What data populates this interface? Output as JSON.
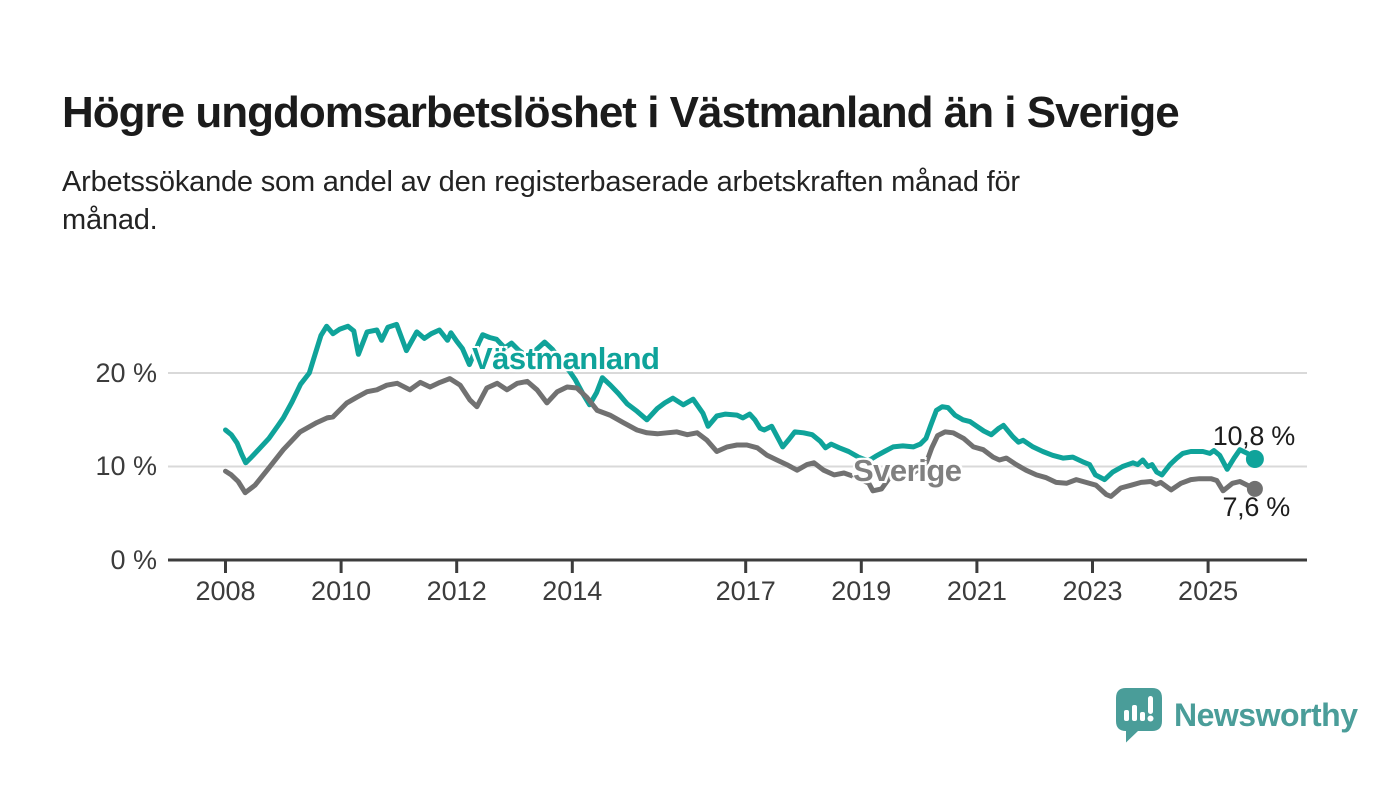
{
  "header": {
    "title": "Högre ungdomsarbetslöshet i Västmanland än i Sverige",
    "subtitle": "Arbetssökande som andel av den registerbaserade arbetskraften månad för\nmånad."
  },
  "chart_data": {
    "type": "line",
    "title": "Högre ungdomsarbetslöshet i Västmanland än i Sverige",
    "subtitle": "Arbetssökande som andel av den registerbaserade arbetskraften månad för månad.",
    "unit": "%",
    "x_ticks": [
      2008,
      2010,
      2012,
      2014,
      2017,
      2019,
      2021,
      2023,
      2025
    ],
    "y_tick_labels": [
      "0 %",
      "10 %",
      "20 %"
    ],
    "y_tick_values": [
      0,
      10,
      20
    ],
    "y_gridlines": [
      10,
      20
    ],
    "ylim": [
      0,
      27
    ],
    "xlim": [
      2007.95,
      2026.7
    ],
    "grid": "horizontal",
    "legend_position": "inline-labels",
    "colors": {
      "grid": "#d9d9d9",
      "axis": "#3c3c3c",
      "tick_text": "#3c3c3c"
    },
    "series": [
      {
        "name": "Västmanland",
        "color": "#0FA39A",
        "end_label": "10,8 %",
        "end_value": 10.8,
        "points": [
          [
            2008.0,
            13.9
          ],
          [
            2008.1,
            13.4
          ],
          [
            2008.2,
            12.5
          ],
          [
            2008.28,
            11.3
          ],
          [
            2008.35,
            10.4
          ],
          [
            2008.45,
            11.0
          ],
          [
            2008.6,
            12.0
          ],
          [
            2008.75,
            13.0
          ],
          [
            2008.9,
            14.3
          ],
          [
            2009.0,
            15.2
          ],
          [
            2009.15,
            16.9
          ],
          [
            2009.3,
            18.8
          ],
          [
            2009.45,
            20.0
          ],
          [
            2009.55,
            22.0
          ],
          [
            2009.65,
            24.0
          ],
          [
            2009.75,
            25.0
          ],
          [
            2009.86,
            24.2
          ],
          [
            2009.98,
            24.7
          ],
          [
            2010.12,
            25.0
          ],
          [
            2010.22,
            24.5
          ],
          [
            2010.3,
            22.0
          ],
          [
            2010.45,
            24.4
          ],
          [
            2010.62,
            24.6
          ],
          [
            2010.7,
            23.5
          ],
          [
            2010.81,
            24.9
          ],
          [
            2010.96,
            25.2
          ],
          [
            2011.13,
            22.4
          ],
          [
            2011.31,
            24.4
          ],
          [
            2011.44,
            23.7
          ],
          [
            2011.56,
            24.2
          ],
          [
            2011.7,
            24.6
          ],
          [
            2011.84,
            23.5
          ],
          [
            2011.9,
            24.3
          ],
          [
            2012.0,
            23.4
          ],
          [
            2012.1,
            22.6
          ],
          [
            2012.22,
            20.9
          ],
          [
            2012.38,
            23.2
          ],
          [
            2012.45,
            24.1
          ],
          [
            2012.57,
            23.8
          ],
          [
            2012.69,
            23.6
          ],
          [
            2012.83,
            22.7
          ],
          [
            2012.95,
            23.2
          ],
          [
            2013.08,
            22.4
          ],
          [
            2013.22,
            21.8
          ],
          [
            2013.36,
            22.4
          ],
          [
            2013.52,
            23.3
          ],
          [
            2013.66,
            22.5
          ],
          [
            2013.81,
            21.2
          ],
          [
            2013.95,
            20.2
          ],
          [
            2014.05,
            19.3
          ],
          [
            2014.19,
            17.7
          ],
          [
            2014.3,
            16.6
          ],
          [
            2014.42,
            17.9
          ],
          [
            2014.52,
            19.5
          ],
          [
            2014.66,
            18.7
          ],
          [
            2014.8,
            17.8
          ],
          [
            2014.95,
            16.7
          ],
          [
            2015.12,
            15.9
          ],
          [
            2015.29,
            15.0
          ],
          [
            2015.47,
            16.2
          ],
          [
            2015.6,
            16.8
          ],
          [
            2015.74,
            17.3
          ],
          [
            2015.92,
            16.6
          ],
          [
            2016.09,
            17.2
          ],
          [
            2016.26,
            15.7
          ],
          [
            2016.35,
            14.3
          ],
          [
            2016.5,
            15.4
          ],
          [
            2016.65,
            15.6
          ],
          [
            2016.85,
            15.5
          ],
          [
            2016.95,
            15.2
          ],
          [
            2017.07,
            15.6
          ],
          [
            2017.16,
            15.0
          ],
          [
            2017.25,
            14.1
          ],
          [
            2017.32,
            13.9
          ],
          [
            2017.45,
            14.3
          ],
          [
            2017.64,
            12.1
          ],
          [
            2017.75,
            12.9
          ],
          [
            2017.85,
            13.7
          ],
          [
            2018.0,
            13.6
          ],
          [
            2018.15,
            13.4
          ],
          [
            2018.29,
            12.7
          ],
          [
            2018.38,
            12.0
          ],
          [
            2018.48,
            12.4
          ],
          [
            2018.62,
            12.0
          ],
          [
            2018.78,
            11.6
          ],
          [
            2018.95,
            11.0
          ],
          [
            2019.12,
            10.6
          ],
          [
            2019.25,
            11.1
          ],
          [
            2019.4,
            11.6
          ],
          [
            2019.55,
            12.1
          ],
          [
            2019.72,
            12.2
          ],
          [
            2019.9,
            12.1
          ],
          [
            2020.02,
            12.4
          ],
          [
            2020.12,
            13.0
          ],
          [
            2020.2,
            14.4
          ],
          [
            2020.3,
            16.0
          ],
          [
            2020.4,
            16.4
          ],
          [
            2020.5,
            16.3
          ],
          [
            2020.62,
            15.5
          ],
          [
            2020.76,
            15.0
          ],
          [
            2020.88,
            14.8
          ],
          [
            2021.0,
            14.3
          ],
          [
            2021.12,
            13.8
          ],
          [
            2021.25,
            13.4
          ],
          [
            2021.38,
            14.1
          ],
          [
            2021.46,
            14.4
          ],
          [
            2021.62,
            13.2
          ],
          [
            2021.72,
            12.6
          ],
          [
            2021.8,
            12.8
          ],
          [
            2021.97,
            12.1
          ],
          [
            2022.14,
            11.6
          ],
          [
            2022.31,
            11.2
          ],
          [
            2022.49,
            10.9
          ],
          [
            2022.66,
            11.0
          ],
          [
            2022.83,
            10.5
          ],
          [
            2022.95,
            10.2
          ],
          [
            2023.05,
            9.1
          ],
          [
            2023.21,
            8.6
          ],
          [
            2023.35,
            9.4
          ],
          [
            2023.52,
            10.0
          ],
          [
            2023.7,
            10.4
          ],
          [
            2023.78,
            10.2
          ],
          [
            2023.87,
            10.7
          ],
          [
            2023.96,
            10.0
          ],
          [
            2024.03,
            10.2
          ],
          [
            2024.11,
            9.4
          ],
          [
            2024.2,
            9.1
          ],
          [
            2024.34,
            10.2
          ],
          [
            2024.46,
            10.9
          ],
          [
            2024.56,
            11.4
          ],
          [
            2024.7,
            11.6
          ],
          [
            2024.91,
            11.6
          ],
          [
            2025.03,
            11.4
          ],
          [
            2025.1,
            11.7
          ],
          [
            2025.2,
            11.2
          ],
          [
            2025.33,
            9.7
          ],
          [
            2025.45,
            10.9
          ],
          [
            2025.55,
            11.8
          ],
          [
            2025.68,
            11.4
          ],
          [
            2025.81,
            10.8
          ]
        ]
      },
      {
        "name": "Sverige",
        "color": "#717171",
        "end_label": "7,6 %",
        "end_value": 7.6,
        "points": [
          [
            2008.0,
            9.5
          ],
          [
            2008.1,
            9.1
          ],
          [
            2008.22,
            8.4
          ],
          [
            2008.34,
            7.2
          ],
          [
            2008.51,
            8.0
          ],
          [
            2008.72,
            9.6
          ],
          [
            2009.0,
            11.8
          ],
          [
            2009.29,
            13.7
          ],
          [
            2009.58,
            14.7
          ],
          [
            2009.76,
            15.2
          ],
          [
            2009.86,
            15.3
          ],
          [
            2010.1,
            16.8
          ],
          [
            2010.27,
            17.4
          ],
          [
            2010.45,
            18.0
          ],
          [
            2010.62,
            18.2
          ],
          [
            2010.79,
            18.7
          ],
          [
            2010.97,
            18.9
          ],
          [
            2011.19,
            18.2
          ],
          [
            2011.37,
            19.0
          ],
          [
            2011.54,
            18.5
          ],
          [
            2011.71,
            19.0
          ],
          [
            2011.88,
            19.4
          ],
          [
            2012.06,
            18.7
          ],
          [
            2012.23,
            17.1
          ],
          [
            2012.35,
            16.4
          ],
          [
            2012.52,
            18.4
          ],
          [
            2012.7,
            18.9
          ],
          [
            2012.87,
            18.2
          ],
          [
            2013.05,
            18.9
          ],
          [
            2013.22,
            19.1
          ],
          [
            2013.39,
            18.2
          ],
          [
            2013.56,
            16.8
          ],
          [
            2013.74,
            18.0
          ],
          [
            2013.91,
            18.5
          ],
          [
            2014.08,
            18.4
          ],
          [
            2014.25,
            17.4
          ],
          [
            2014.43,
            16.0
          ],
          [
            2014.65,
            15.5
          ],
          [
            2014.88,
            14.7
          ],
          [
            2015.12,
            13.9
          ],
          [
            2015.29,
            13.6
          ],
          [
            2015.47,
            13.5
          ],
          [
            2015.64,
            13.6
          ],
          [
            2015.81,
            13.7
          ],
          [
            2015.99,
            13.4
          ],
          [
            2016.16,
            13.6
          ],
          [
            2016.33,
            12.8
          ],
          [
            2016.5,
            11.6
          ],
          [
            2016.68,
            12.1
          ],
          [
            2016.85,
            12.3
          ],
          [
            2017.02,
            12.3
          ],
          [
            2017.2,
            12.0
          ],
          [
            2017.37,
            11.2
          ],
          [
            2017.54,
            10.7
          ],
          [
            2017.71,
            10.2
          ],
          [
            2017.89,
            9.6
          ],
          [
            2018.06,
            10.2
          ],
          [
            2018.18,
            10.4
          ],
          [
            2018.35,
            9.6
          ],
          [
            2018.53,
            9.1
          ],
          [
            2018.7,
            9.3
          ],
          [
            2018.93,
            8.8
          ],
          [
            2019.13,
            8.2
          ],
          [
            2019.2,
            7.4
          ],
          [
            2019.35,
            7.6
          ],
          [
            2019.5,
            8.9
          ],
          [
            2019.7,
            9.1
          ],
          [
            2019.9,
            9.3
          ],
          [
            2020.12,
            10.3
          ],
          [
            2020.22,
            12.0
          ],
          [
            2020.32,
            13.3
          ],
          [
            2020.45,
            13.7
          ],
          [
            2020.59,
            13.6
          ],
          [
            2020.77,
            13.0
          ],
          [
            2020.94,
            12.1
          ],
          [
            2021.11,
            11.8
          ],
          [
            2021.28,
            11.0
          ],
          [
            2021.39,
            10.7
          ],
          [
            2021.51,
            10.9
          ],
          [
            2021.68,
            10.2
          ],
          [
            2021.85,
            9.6
          ],
          [
            2022.03,
            9.1
          ],
          [
            2022.2,
            8.8
          ],
          [
            2022.37,
            8.3
          ],
          [
            2022.55,
            8.2
          ],
          [
            2022.72,
            8.6
          ],
          [
            2022.89,
            8.3
          ],
          [
            2023.06,
            8.0
          ],
          [
            2023.24,
            7.0
          ],
          [
            2023.32,
            6.8
          ],
          [
            2023.49,
            7.7
          ],
          [
            2023.67,
            8.0
          ],
          [
            2023.84,
            8.3
          ],
          [
            2024.01,
            8.4
          ],
          [
            2024.1,
            8.1
          ],
          [
            2024.18,
            8.3
          ],
          [
            2024.36,
            7.5
          ],
          [
            2024.53,
            8.2
          ],
          [
            2024.7,
            8.6
          ],
          [
            2024.85,
            8.7
          ],
          [
            2025.05,
            8.7
          ],
          [
            2025.15,
            8.5
          ],
          [
            2025.26,
            7.4
          ],
          [
            2025.42,
            8.2
          ],
          [
            2025.55,
            8.4
          ],
          [
            2025.68,
            8.0
          ],
          [
            2025.81,
            7.6
          ]
        ]
      }
    ]
  },
  "branding": {
    "logo_text": "Newsworthy",
    "logo_color": "#4A9D99",
    "logo_icon": "speech-bubble-bar-chart-icon"
  }
}
